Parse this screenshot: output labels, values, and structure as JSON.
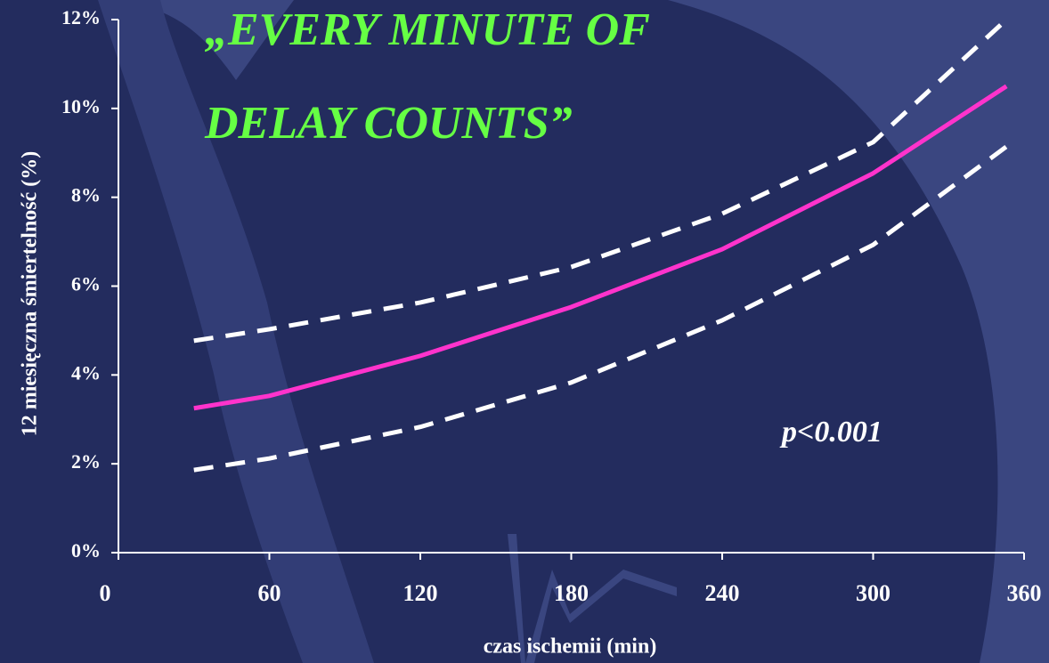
{
  "chart_data": {
    "type": "line",
    "title": [
      "„EVERY MINUTE OF",
      "DELAY COUNTS”"
    ],
    "annotation": "p<0.001",
    "ylabel": "12 miesięczna śmiertelność (%)",
    "xlabel": "czas ischemii (min)",
    "x": [
      30,
      60,
      120,
      180,
      240,
      300,
      353
    ],
    "series": [
      {
        "color": "#ff33cc",
        "line_style": "solid",
        "values": [
          3.25,
          3.53,
          4.43,
          5.53,
          6.83,
          8.54,
          10.5
        ]
      },
      {
        "color": "#ffffff",
        "line_style": "dashed",
        "values": [
          4.77,
          5.03,
          5.63,
          6.43,
          7.63,
          9.24,
          12.0
        ]
      },
      {
        "color": "#ffffff",
        "line_style": "dashed",
        "values": [
          1.86,
          2.12,
          2.83,
          3.83,
          5.23,
          6.93,
          9.14
        ]
      }
    ],
    "xlim": [
      0,
      360
    ],
    "xticks": [
      0,
      60,
      120,
      180,
      240,
      300,
      360
    ],
    "ylim": [
      0,
      12
    ],
    "yticks": [
      {
        "value": 0,
        "label": "0%"
      },
      {
        "value": 2,
        "label": "2%"
      },
      {
        "value": 4,
        "label": "4%"
      },
      {
        "value": 6,
        "label": "6%"
      },
      {
        "value": 8,
        "label": "8%"
      },
      {
        "value": 10,
        "label": "10%"
      },
      {
        "value": 12,
        "label": "12%"
      }
    ]
  }
}
